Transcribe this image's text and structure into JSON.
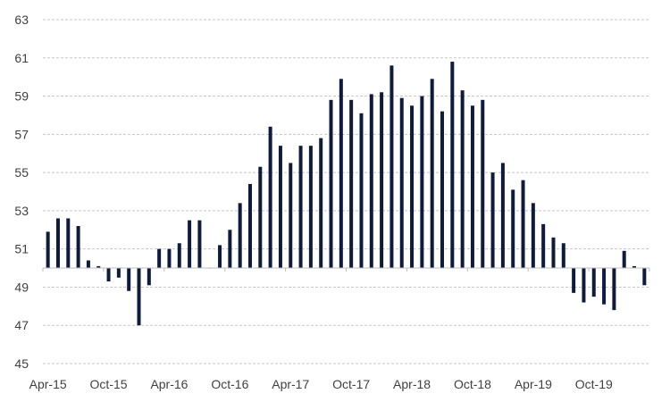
{
  "chart_data": {
    "type": "bar",
    "title": "",
    "xlabel": "",
    "ylabel": "",
    "ylim": [
      45,
      63
    ],
    "baseline": 50,
    "y_ticks": [
      45,
      47,
      49,
      51,
      53,
      55,
      57,
      59,
      61,
      63
    ],
    "grid": true,
    "x_tick_labels": [
      "Apr-15",
      "Oct-15",
      "Apr-16",
      "Oct-16",
      "Apr-17",
      "Oct-17",
      "Apr-18",
      "Oct-18",
      "Apr-19",
      "Oct-19"
    ],
    "categories": [
      "Apr-15",
      "May-15",
      "Jun-15",
      "Jul-15",
      "Aug-15",
      "Sep-15",
      "Oct-15",
      "Nov-15",
      "Dec-15",
      "Jan-16",
      "Feb-16",
      "Mar-16",
      "Apr-16",
      "May-16",
      "Jun-16",
      "Jul-16",
      "Aug-16",
      "Sep-16",
      "Oct-16",
      "Nov-16",
      "Dec-16",
      "Jan-17",
      "Feb-17",
      "Mar-17",
      "Apr-17",
      "May-17",
      "Jun-17",
      "Jul-17",
      "Aug-17",
      "Sep-17",
      "Oct-17",
      "Nov-17",
      "Dec-17",
      "Jan-18",
      "Feb-18",
      "Mar-18",
      "Apr-18",
      "May-18",
      "Jun-18",
      "Jul-18",
      "Aug-18",
      "Sep-18",
      "Oct-18",
      "Nov-18",
      "Dec-18",
      "Jan-19",
      "Feb-19",
      "Mar-19",
      "Apr-19",
      "May-19",
      "Jun-19",
      "Jul-19",
      "Aug-19",
      "Sep-19",
      "Oct-19",
      "Nov-19",
      "Dec-19",
      "Jan-20",
      "Feb-20",
      "Mar-20"
    ],
    "values": [
      51.9,
      52.6,
      52.6,
      52.2,
      50.4,
      50.1,
      49.3,
      49.5,
      48.8,
      47.0,
      49.1,
      51.0,
      51.0,
      51.3,
      52.5,
      52.5,
      50.0,
      51.2,
      52.0,
      53.4,
      54.4,
      55.3,
      57.4,
      56.4,
      55.5,
      56.4,
      56.4,
      56.8,
      58.8,
      59.9,
      58.8,
      58.1,
      59.1,
      59.2,
      60.6,
      58.9,
      58.5,
      59.0,
      59.9,
      58.2,
      60.8,
      59.3,
      58.5,
      58.8,
      55.0,
      55.5,
      54.1,
      54.6,
      53.4,
      52.3,
      51.6,
      51.3,
      48.7,
      48.2,
      48.5,
      48.1,
      47.8,
      50.9,
      50.1,
      49.1
    ],
    "colors": {
      "bar": "#0f1b3d",
      "grid": "#c8c8c8",
      "text": "#404040"
    }
  }
}
